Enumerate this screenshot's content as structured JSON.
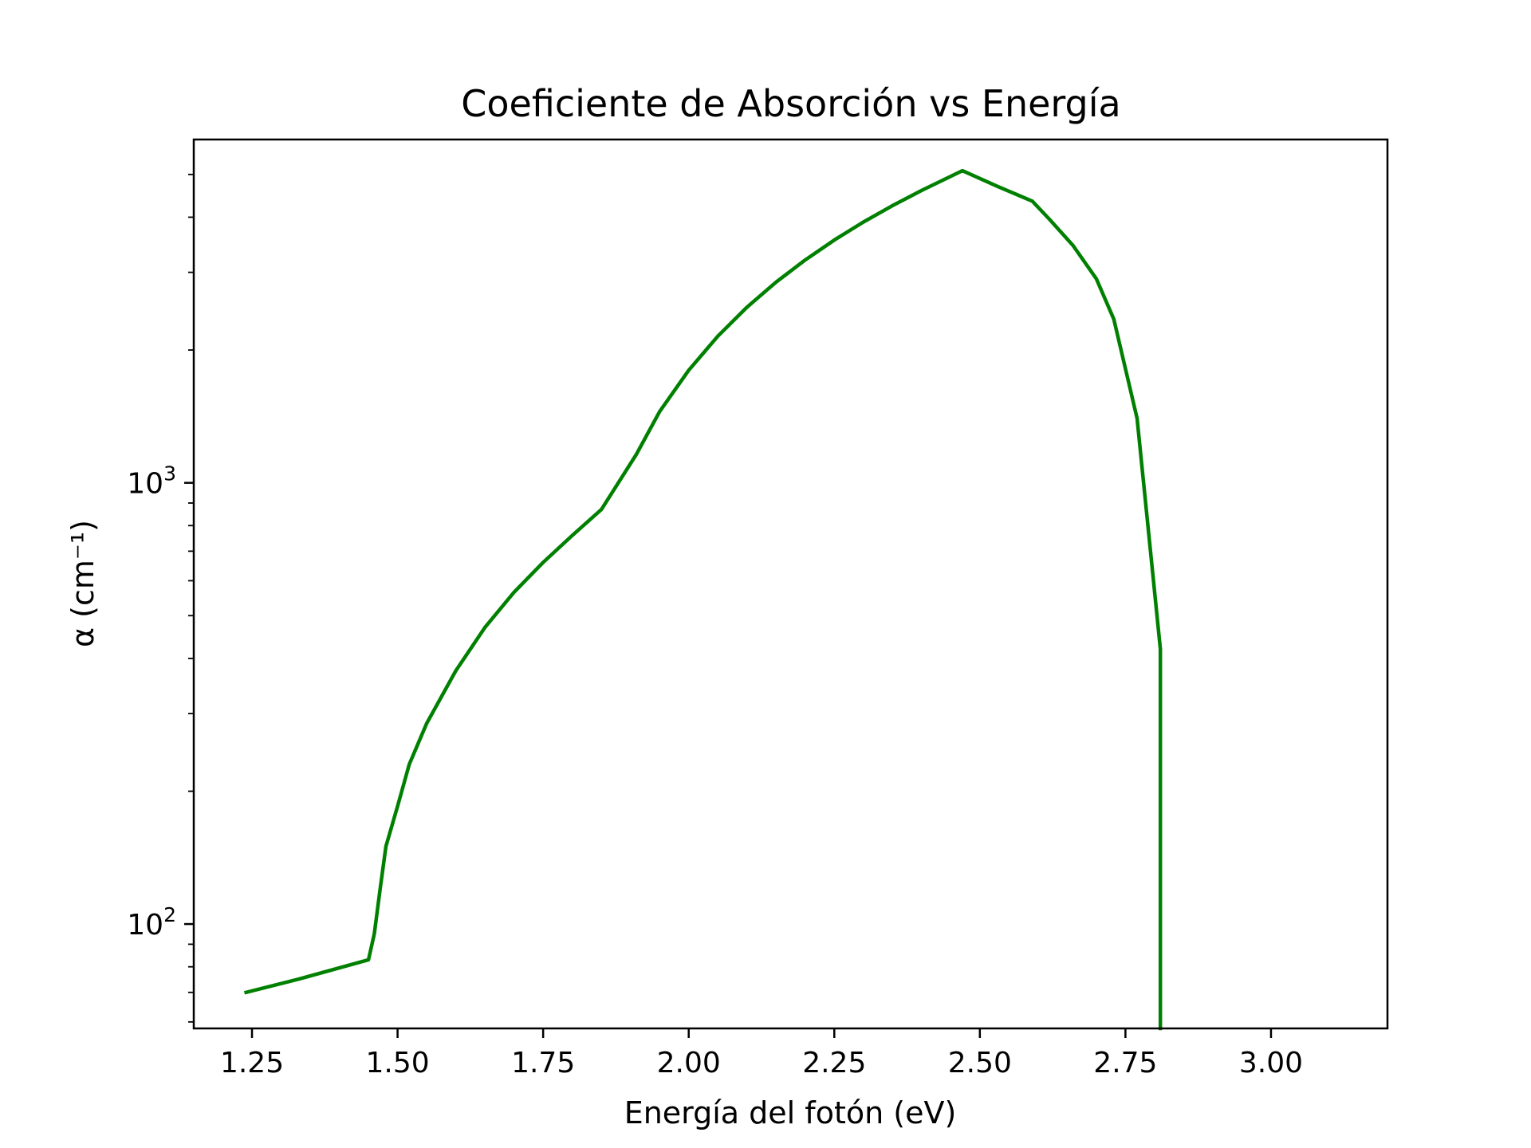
{
  "chart_data": {
    "type": "line",
    "title": "Coeficiente de Absorción vs Energía",
    "xlabel": "Energía del fotón (eV)",
    "ylabel": "α (cm⁻¹)",
    "xlim": [
      1.15,
      3.2
    ],
    "ylim": [
      58,
      6000
    ],
    "y_scale": "log",
    "grid": false,
    "x_ticks": [
      {
        "value": 1.25,
        "label": "1.25"
      },
      {
        "value": 1.5,
        "label": "1.50"
      },
      {
        "value": 1.75,
        "label": "1.75"
      },
      {
        "value": 2.0,
        "label": "2.00"
      },
      {
        "value": 2.25,
        "label": "2.25"
      },
      {
        "value": 2.5,
        "label": "2.50"
      },
      {
        "value": 2.75,
        "label": "2.75"
      },
      {
        "value": 3.0,
        "label": "3.00"
      }
    ],
    "y_ticks": [
      {
        "value": 100,
        "base": "10",
        "exp": "2"
      },
      {
        "value": 1000,
        "base": "10",
        "exp": "3"
      }
    ],
    "series": [
      {
        "color": "#008000",
        "points": [
          [
            1.24,
            70
          ],
          [
            1.33,
            75
          ],
          [
            1.45,
            83
          ],
          [
            1.46,
            95
          ],
          [
            1.47,
            120
          ],
          [
            1.48,
            150
          ],
          [
            1.5,
            185
          ],
          [
            1.52,
            230
          ],
          [
            1.55,
            285
          ],
          [
            1.6,
            375
          ],
          [
            1.65,
            470
          ],
          [
            1.7,
            565
          ],
          [
            1.75,
            660
          ],
          [
            1.8,
            760
          ],
          [
            1.85,
            870
          ],
          [
            1.91,
            1160
          ],
          [
            1.95,
            1450
          ],
          [
            2.0,
            1800
          ],
          [
            2.05,
            2150
          ],
          [
            2.1,
            2500
          ],
          [
            2.15,
            2850
          ],
          [
            2.2,
            3200
          ],
          [
            2.25,
            3550
          ],
          [
            2.3,
            3900
          ],
          [
            2.35,
            4250
          ],
          [
            2.4,
            4600
          ],
          [
            2.47,
            5100
          ],
          [
            2.53,
            4700
          ],
          [
            2.59,
            4350
          ],
          [
            2.62,
            3950
          ],
          [
            2.66,
            3450
          ],
          [
            2.7,
            2900
          ],
          [
            2.73,
            2350
          ],
          [
            2.77,
            1400
          ],
          [
            2.81,
            420
          ],
          [
            2.81,
            58
          ]
        ]
      }
    ]
  }
}
